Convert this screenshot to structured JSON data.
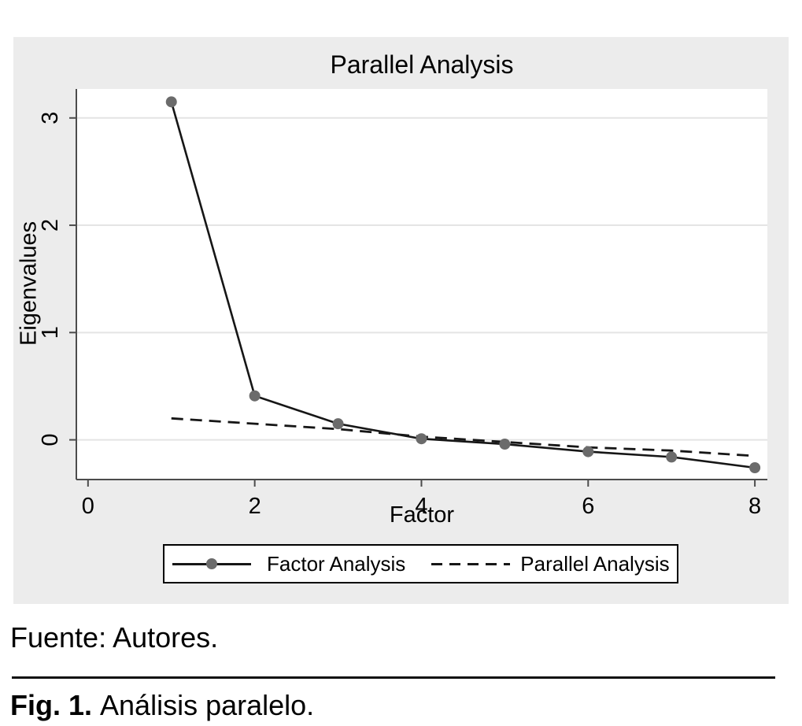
{
  "colors": {
    "figure_bg": "#ECECEC",
    "plot_bg": "#FFFFFF",
    "grid": "#E4E4E4",
    "axis": "#4C4C4C",
    "line": "#161616",
    "marker": "#6B6B6B",
    "text": "#000000"
  },
  "chart_data": {
    "type": "line",
    "title": "Parallel Analysis",
    "xlabel": "Factor",
    "ylabel": "Eigenvalues",
    "x": [
      1,
      2,
      3,
      4,
      5,
      6,
      7,
      8
    ],
    "series": [
      {
        "name": "Factor Analysis",
        "line": "solid",
        "marker": "circle",
        "values": [
          3.15,
          0.41,
          0.15,
          0.01,
          -0.04,
          -0.11,
          -0.16,
          -0.26
        ]
      },
      {
        "name": "Parallel Analysis",
        "line": "dashed",
        "marker": "none",
        "values": [
          0.2,
          0.15,
          0.1,
          0.03,
          -0.02,
          -0.07,
          -0.1,
          -0.15
        ]
      }
    ],
    "xticks": [
      0,
      2,
      4,
      6,
      8
    ],
    "yticks": [
      0,
      1,
      2,
      3
    ],
    "xlim": [
      -0.14,
      8.15
    ],
    "ylim": [
      -0.37,
      3.27
    ],
    "grid": "horizontal",
    "legend_position": "bottom"
  },
  "legend": {
    "items": [
      {
        "label": "Factor Analysis",
        "sample": "solid-line-with-marker"
      },
      {
        "label": "Parallel Analysis",
        "sample": "dashed-line"
      }
    ]
  },
  "source_note": "Fuente: Autores.",
  "figure_caption": {
    "label": "Fig. 1.",
    "text": "Análisis paralelo."
  }
}
